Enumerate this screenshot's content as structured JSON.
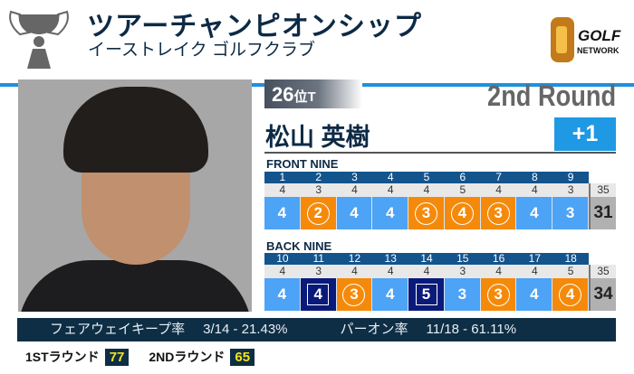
{
  "header": {
    "title": "ツアーチャンピオンシップ",
    "subtitle": "イーストレイク ゴルフクラブ",
    "logo_text": "GOLF NETWORK",
    "trophy_icon": "trophy-icon"
  },
  "player": {
    "rank": "26",
    "rank_suffix": "位T",
    "round": "2nd Round",
    "name": "松山 英樹",
    "to_par": "+1"
  },
  "colors": {
    "par": "#4da3f5",
    "birdie": "#f58a0a",
    "bogey": "#0a1a7a",
    "accent": "#1f90dc",
    "header_row": "#13548d"
  },
  "front": {
    "label": "FRONT NINE",
    "holes": [
      "1",
      "2",
      "3",
      "4",
      "5",
      "6",
      "7",
      "8",
      "9"
    ],
    "pars": [
      "4",
      "3",
      "4",
      "4",
      "4",
      "5",
      "4",
      "4",
      "3"
    ],
    "par_total": "35",
    "scores": [
      "4",
      "2",
      "4",
      "4",
      "3",
      "4",
      "3",
      "4",
      "3"
    ],
    "results": [
      "par",
      "birdie",
      "par",
      "par",
      "birdie",
      "birdie",
      "birdie",
      "par",
      "par"
    ],
    "total": "31"
  },
  "back": {
    "label": "BACK NINE",
    "holes": [
      "10",
      "11",
      "12",
      "13",
      "14",
      "15",
      "16",
      "17",
      "18"
    ],
    "pars": [
      "4",
      "3",
      "4",
      "4",
      "4",
      "3",
      "4",
      "4",
      "5"
    ],
    "par_total": "35",
    "scores": [
      "4",
      "4",
      "3",
      "4",
      "5",
      "3",
      "3",
      "4",
      "4"
    ],
    "results": [
      "par",
      "bogey",
      "birdie",
      "par",
      "bogey",
      "par",
      "birdie",
      "par",
      "birdie"
    ],
    "total": "34"
  },
  "stats": {
    "fairway_label": "フェアウェイキープ率",
    "fairway_value": "3/14 - 21.43%",
    "gir_label": "パーオン率",
    "gir_value": "11/18 - 61.11%"
  },
  "rounds": [
    {
      "label": "1STラウンド",
      "score": "77"
    },
    {
      "label": "2NDラウンド",
      "score": "65"
    }
  ]
}
